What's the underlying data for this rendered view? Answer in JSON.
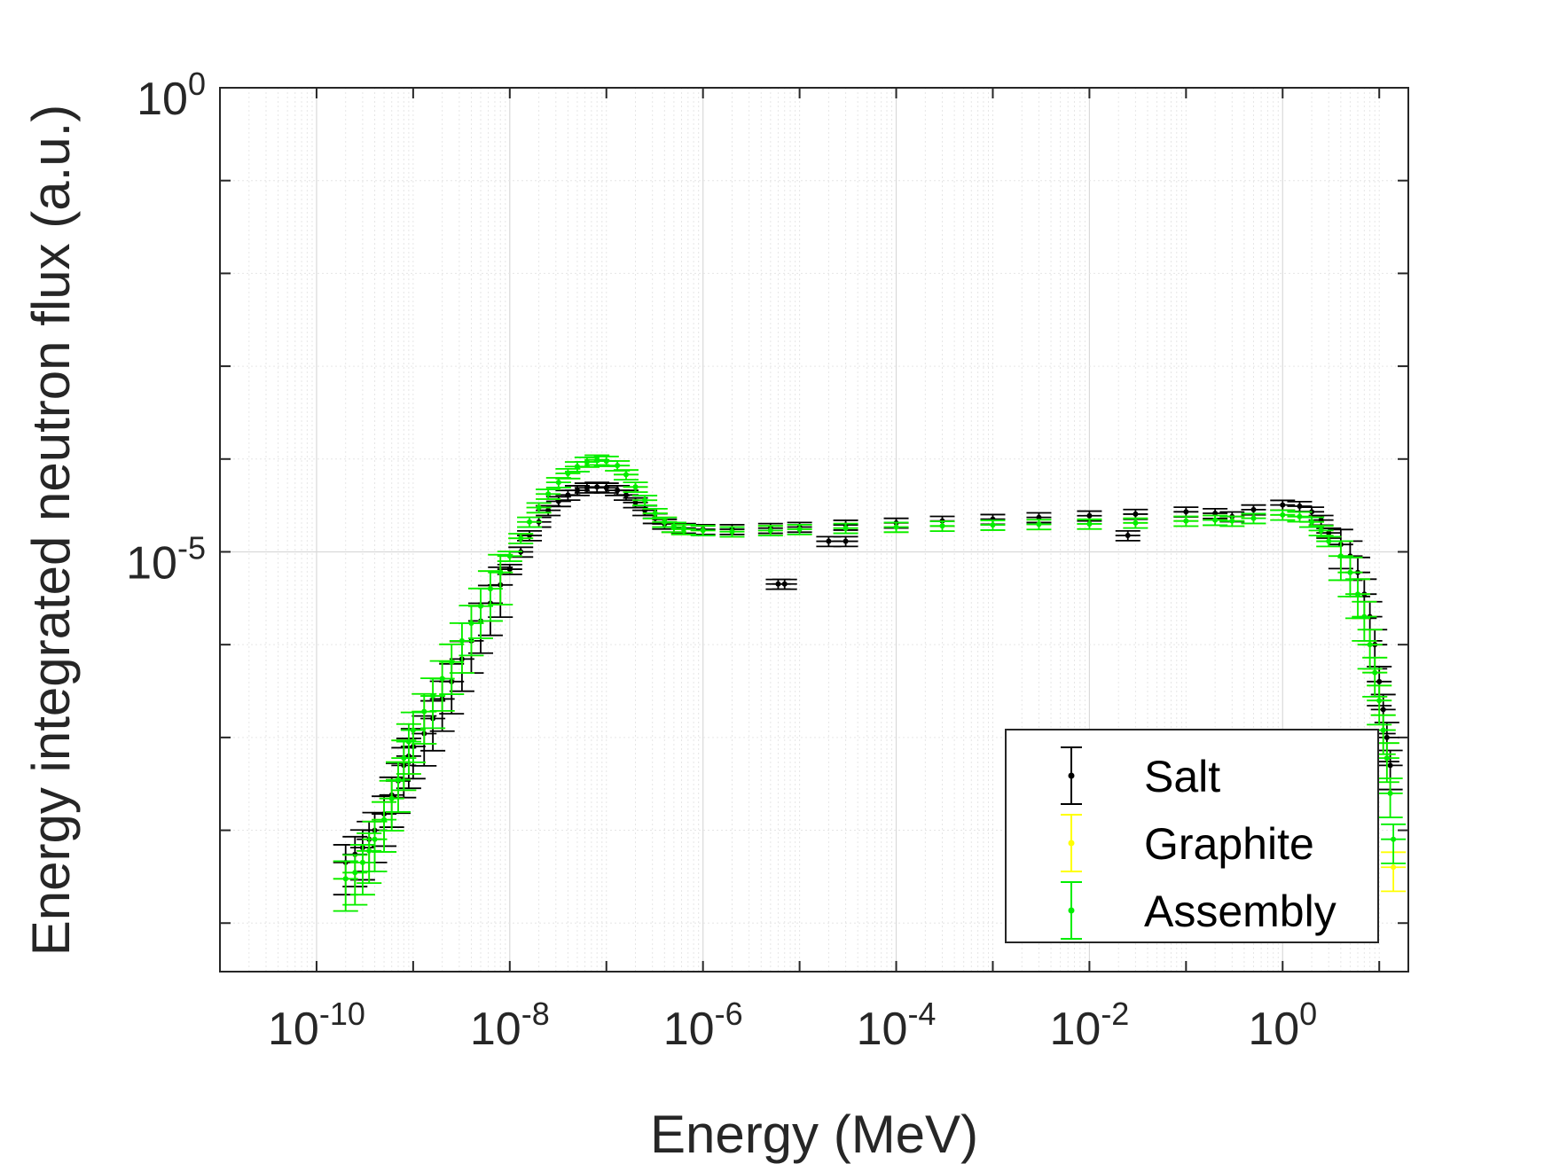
{
  "chart_data": {
    "type": "scatter",
    "xlabel": "Energy (MeV)",
    "ylabel": "Energy integrated neutron flux (a.u.)",
    "xscale": "log",
    "yscale": "log",
    "xlim": [
      1e-11,
      20
    ],
    "ylim": [
      3e-10,
      1
    ],
    "grid": true,
    "minor_grid": true,
    "legend_position": "bottom-right",
    "x_ticks": [
      {
        "base": "10",
        "exp": "-10"
      },
      {
        "base": "10",
        "exp": "-8"
      },
      {
        "base": "10",
        "exp": "-6"
      },
      {
        "base": "10",
        "exp": "-4"
      },
      {
        "base": "10",
        "exp": "-2"
      },
      {
        "base": "10",
        "exp": "0"
      }
    ],
    "y_ticks": [
      {
        "base": "10",
        "exp": "-5"
      },
      {
        "base": "10",
        "exp": "0"
      }
    ],
    "series": [
      {
        "name": "Salt",
        "color": "#000000",
        "points": [
          [
            2e-10,
            4.5e-09
          ],
          [
            2.5e-10,
            5.5e-09
          ],
          [
            3e-10,
            6.5e-09
          ],
          [
            3.5e-10,
            8e-09
          ],
          [
            4e-10,
            1e-08
          ],
          [
            5e-10,
            1.5e-08
          ],
          [
            6e-10,
            2.4e-08
          ],
          [
            7e-10,
            3.4e-08
          ],
          [
            8e-10,
            5e-08
          ],
          [
            9e-10,
            6.3e-08
          ],
          [
            1e-09,
            8e-08
          ],
          [
            1.3e-09,
            1.1e-07
          ],
          [
            1.6e-09,
            1.6e-07
          ],
          [
            2e-09,
            2.6e-07
          ],
          [
            2.5e-09,
            4e-07
          ],
          [
            3.2e-09,
            7e-07
          ],
          [
            4e-09,
            1.1e-06
          ],
          [
            5e-09,
            1.8e-06
          ],
          [
            6.3e-09,
            2.8e-06
          ],
          [
            8e-09,
            4.4e-06
          ],
          [
            1e-08,
            6.5e-06
          ],
          [
            1.3e-08,
            1e-05
          ],
          [
            1.6e-08,
            1.5e-05
          ],
          [
            2e-08,
            2.1e-05
          ],
          [
            2.5e-08,
            2.8e-05
          ],
          [
            3.2e-08,
            3.5e-05
          ],
          [
            4e-08,
            4.1e-05
          ],
          [
            5e-08,
            4.6e-05
          ],
          [
            6.3e-08,
            4.9e-05
          ],
          [
            8e-08,
            5e-05
          ],
          [
            1e-07,
            4.9e-05
          ],
          [
            1.3e-07,
            4.6e-05
          ],
          [
            1.6e-07,
            4.1e-05
          ],
          [
            2e-07,
            3.4e-05
          ],
          [
            2.5e-07,
            2.8e-05
          ],
          [
            3.2e-07,
            2.3e-05
          ],
          [
            4e-07,
            2e-05
          ],
          [
            5e-07,
            1.85e-05
          ],
          [
            6.3e-07,
            1.8e-05
          ],
          [
            1e-06,
            1.75e-05
          ],
          [
            2e-06,
            1.75e-05
          ],
          [
            5e-06,
            1.8e-05
          ],
          [
            1e-05,
            1.85e-05
          ],
          [
            3e-05,
            1.95e-05
          ],
          [
            0.0001,
            2.05e-05
          ],
          [
            0.0003,
            2.15e-05
          ],
          [
            0.001,
            2.25e-05
          ],
          [
            0.003,
            2.35e-05
          ],
          [
            0.01,
            2.45e-05
          ],
          [
            0.03,
            2.55e-05
          ],
          [
            0.1,
            2.7e-05
          ],
          [
            0.2,
            2.6e-05
          ],
          [
            0.3,
            2.4e-05
          ],
          [
            0.5,
            2.85e-05
          ],
          [
            1.0,
            3.2e-05
          ],
          [
            1.5,
            3.1e-05
          ],
          [
            2.0,
            2.7e-05
          ],
          [
            2.5,
            2.2e-05
          ],
          [
            3.0,
            1.6e-05
          ],
          [
            4.0,
            1.2e-05
          ],
          [
            5.0,
            9e-06
          ],
          [
            6.0,
            6e-06
          ],
          [
            7.0,
            3.5e-06
          ],
          [
            8.0,
            2e-06
          ],
          [
            9.0,
            1e-06
          ],
          [
            10.0,
            4e-07
          ],
          [
            11.0,
            2e-07
          ],
          [
            12.0,
            1e-07
          ],
          [
            13.0,
            5e-08
          ],
          [
            6e-06,
            4.5e-06
          ],
          [
            7e-06,
            4.5e-06
          ],
          [
            2e-05,
            1.3e-05
          ],
          [
            3e-05,
            1.3e-05
          ],
          [
            0.025,
            1.5e-05
          ]
        ]
      },
      {
        "name": "Graphite",
        "color": "#ffff00",
        "points": [
          [
            2e-10,
            3e-09
          ],
          [
            2.5e-10,
            3.5e-09
          ],
          [
            3e-10,
            4.5e-09
          ],
          [
            3.5e-10,
            6e-09
          ],
          [
            4e-10,
            8e-09
          ],
          [
            5e-10,
            1.3e-08
          ],
          [
            6e-10,
            2.2e-08
          ],
          [
            7e-10,
            3.5e-08
          ],
          [
            8e-10,
            6e-08
          ],
          [
            9e-10,
            9e-08
          ],
          [
            1e-09,
            1.2e-07
          ],
          [
            1.3e-09,
            1.9e-07
          ],
          [
            1.6e-09,
            2.8e-07
          ],
          [
            2e-09,
            4.3e-07
          ],
          [
            2.5e-09,
            6.5e-07
          ],
          [
            3.2e-09,
            1.1e-06
          ],
          [
            4e-09,
            1.7e-06
          ],
          [
            5e-09,
            2.6e-06
          ],
          [
            6.3e-09,
            4e-06
          ],
          [
            8e-09,
            6e-06
          ],
          [
            1e-08,
            9e-06
          ],
          [
            1.3e-08,
            1.4e-05
          ],
          [
            1.6e-08,
            2.1e-05
          ],
          [
            2e-08,
            3e-05
          ],
          [
            2.5e-08,
            4.2e-05
          ],
          [
            3.2e-08,
            5.6e-05
          ],
          [
            4e-08,
            7e-05
          ],
          [
            5e-08,
            8.3e-05
          ],
          [
            6.3e-08,
            9.3e-05
          ],
          [
            8e-08,
            9.8e-05
          ],
          [
            1e-07,
            9.5e-05
          ],
          [
            1.3e-07,
            8.5e-05
          ],
          [
            1.6e-07,
            6.8e-05
          ],
          [
            2e-07,
            5e-05
          ],
          [
            2.5e-07,
            3.6e-05
          ],
          [
            3.2e-07,
            2.6e-05
          ],
          [
            4e-07,
            2.1e-05
          ],
          [
            5e-07,
            1.85e-05
          ],
          [
            6.3e-07,
            1.75e-05
          ],
          [
            1e-06,
            1.7e-05
          ],
          [
            2e-06,
            1.65e-05
          ],
          [
            5e-06,
            1.7e-05
          ],
          [
            1e-05,
            1.75e-05
          ],
          [
            3e-05,
            1.8e-05
          ],
          [
            0.0001,
            1.85e-05
          ],
          [
            0.0003,
            1.9e-05
          ],
          [
            0.001,
            1.95e-05
          ],
          [
            0.003,
            1.98e-05
          ],
          [
            0.01,
            2e-05
          ],
          [
            0.03,
            2.05e-05
          ],
          [
            0.1,
            2.15e-05
          ],
          [
            0.2,
            2.2e-05
          ],
          [
            0.3,
            2.15e-05
          ],
          [
            0.5,
            2.3e-05
          ],
          [
            1.0,
            2.5e-05
          ],
          [
            1.5,
            2.4e-05
          ],
          [
            2.0,
            2.1e-05
          ],
          [
            2.5,
            1.7e-05
          ],
          [
            3.0,
            1.3e-05
          ],
          [
            4.0,
            9e-06
          ],
          [
            5.0,
            6e-06
          ],
          [
            6.0,
            3.5e-06
          ],
          [
            7.0,
            2e-06
          ],
          [
            8.0,
            1e-06
          ],
          [
            9.0,
            5e-07
          ],
          [
            10.0,
            2.5e-07
          ],
          [
            11.0,
            1.2e-07
          ],
          [
            12.0,
            6e-08
          ],
          [
            13.0,
            2.5e-08
          ],
          [
            14.0,
            4e-09
          ]
        ]
      },
      {
        "name": "Assembly",
        "color": "#00ee00",
        "points": [
          [
            2e-10,
            3e-09
          ],
          [
            2.5e-10,
            3.5e-09
          ],
          [
            3e-10,
            4.5e-09
          ],
          [
            3.5e-10,
            6e-09
          ],
          [
            4e-10,
            8e-09
          ],
          [
            5e-10,
            1.3e-08
          ],
          [
            6e-10,
            2.2e-08
          ],
          [
            7e-10,
            3.5e-08
          ],
          [
            8e-10,
            6e-08
          ],
          [
            9e-10,
            9e-08
          ],
          [
            1e-09,
            1.2e-07
          ],
          [
            1.3e-09,
            1.9e-07
          ],
          [
            1.6e-09,
            2.8e-07
          ],
          [
            2e-09,
            4.3e-07
          ],
          [
            2.5e-09,
            6.5e-07
          ],
          [
            3.2e-09,
            1.1e-06
          ],
          [
            4e-09,
            1.7e-06
          ],
          [
            5e-09,
            2.6e-06
          ],
          [
            6.3e-09,
            4e-06
          ],
          [
            8e-09,
            6e-06
          ],
          [
            1e-08,
            9e-06
          ],
          [
            1.3e-08,
            1.4e-05
          ],
          [
            1.6e-08,
            2.1e-05
          ],
          [
            2e-08,
            3e-05
          ],
          [
            2.5e-08,
            4.2e-05
          ],
          [
            3.2e-08,
            5.6e-05
          ],
          [
            4e-08,
            7e-05
          ],
          [
            5e-08,
            8.3e-05
          ],
          [
            6.3e-08,
            9.3e-05
          ],
          [
            8e-08,
            9.8e-05
          ],
          [
            1e-07,
            9.5e-05
          ],
          [
            1.3e-07,
            8.5e-05
          ],
          [
            1.6e-07,
            6.8e-05
          ],
          [
            2e-07,
            5e-05
          ],
          [
            2.5e-07,
            3.6e-05
          ],
          [
            3.2e-07,
            2.6e-05
          ],
          [
            4e-07,
            2.1e-05
          ],
          [
            5e-07,
            1.85e-05
          ],
          [
            6.3e-07,
            1.75e-05
          ],
          [
            1e-06,
            1.7e-05
          ],
          [
            2e-06,
            1.65e-05
          ],
          [
            5e-06,
            1.7e-05
          ],
          [
            1e-05,
            1.75e-05
          ],
          [
            3e-05,
            1.8e-05
          ],
          [
            0.0001,
            1.85e-05
          ],
          [
            0.0003,
            1.9e-05
          ],
          [
            0.001,
            1.95e-05
          ],
          [
            0.003,
            1.98e-05
          ],
          [
            0.01,
            2e-05
          ],
          [
            0.03,
            2.05e-05
          ],
          [
            0.1,
            2.15e-05
          ],
          [
            0.2,
            2.2e-05
          ],
          [
            0.3,
            2.15e-05
          ],
          [
            0.5,
            2.3e-05
          ],
          [
            1.0,
            2.5e-05
          ],
          [
            1.5,
            2.4e-05
          ],
          [
            2.0,
            2.1e-05
          ],
          [
            2.5,
            1.7e-05
          ],
          [
            3.0,
            1.3e-05
          ],
          [
            4.0,
            9e-06
          ],
          [
            5.0,
            6e-06
          ],
          [
            6.0,
            3.5e-06
          ],
          [
            7.0,
            2e-06
          ],
          [
            8.0,
            1e-06
          ],
          [
            9.0,
            5e-07
          ],
          [
            10.0,
            2.5e-07
          ],
          [
            11.0,
            1.2e-07
          ],
          [
            12.0,
            6e-08
          ],
          [
            13.0,
            2.5e-08
          ],
          [
            14.0,
            8e-09
          ]
        ]
      }
    ]
  }
}
